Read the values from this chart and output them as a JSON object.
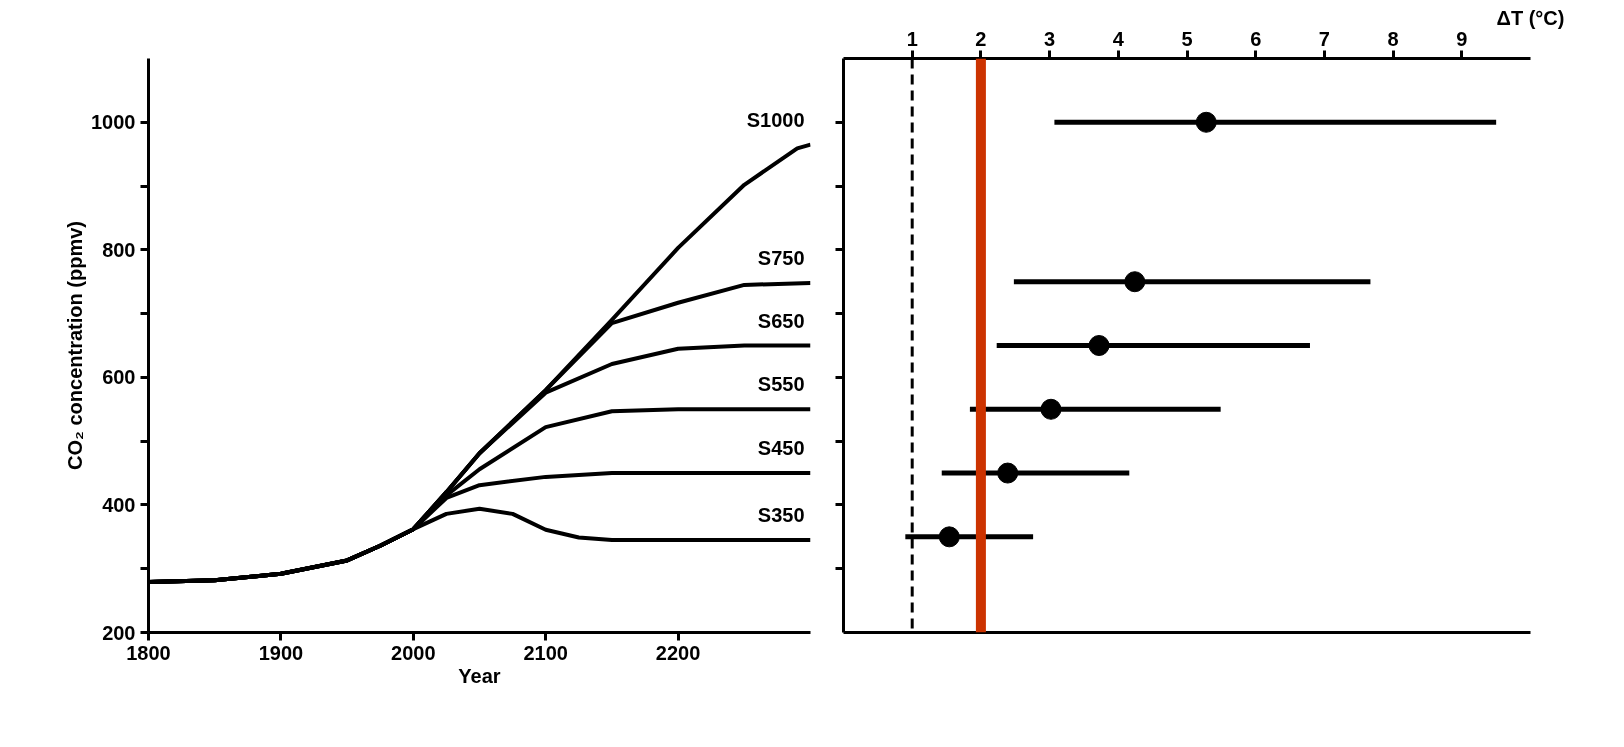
{
  "chart_data": [
    {
      "type": "line",
      "xlabel": "Year",
      "ylabel": "CO₂ concentration (ppmv)",
      "xlim": [
        1800,
        2300
      ],
      "xticks": [
        1800,
        1900,
        2000,
        2100,
        2200
      ],
      "ylim": [
        200,
        1100
      ],
      "yticks": [
        200,
        {
          "value": 300,
          "label": null
        },
        400,
        {
          "value": 500,
          "label": null
        },
        600,
        {
          "value": 700,
          "label": null
        },
        800,
        {
          "value": 900,
          "label": null
        },
        1000
      ],
      "legend": "right",
      "grid": false,
      "marker": "none",
      "line_style": "solid",
      "series": [
        {
          "name": "S1000",
          "color": "#000000",
          "x": [
            1800,
            1850,
            1900,
            1950,
            1975,
            2000,
            2025,
            2050,
            2100,
            2150,
            2200,
            2250,
            2290,
            2300
          ],
          "values": [
            279,
            282,
            292,
            313,
            336,
            362,
            420,
            481,
            580,
            690,
            803,
            902,
            959,
            965
          ]
        },
        {
          "name": "S750",
          "color": "#000000",
          "x": [
            1800,
            1850,
            1900,
            1950,
            1975,
            2000,
            2025,
            2050,
            2100,
            2150,
            2200,
            2250,
            2300
          ],
          "values": [
            279,
            282,
            292,
            313,
            336,
            362,
            420,
            481,
            580,
            685,
            717,
            745,
            748
          ]
        },
        {
          "name": "S650",
          "color": "#000000",
          "x": [
            1800,
            1850,
            1900,
            1950,
            1975,
            2000,
            2025,
            2050,
            2100,
            2150,
            2200,
            2250,
            2300
          ],
          "values": [
            279,
            282,
            292,
            313,
            336,
            362,
            420,
            481,
            576,
            621,
            645,
            650,
            650
          ]
        },
        {
          "name": "S550",
          "color": "#000000",
          "x": [
            1800,
            1850,
            1900,
            1950,
            1975,
            2000,
            2025,
            2050,
            2100,
            2150,
            2200,
            2300
          ],
          "values": [
            279,
            282,
            292,
            313,
            336,
            362,
            415,
            456,
            522,
            547,
            550,
            550
          ]
        },
        {
          "name": "S450",
          "color": "#000000",
          "x": [
            1800,
            1850,
            1900,
            1950,
            1975,
            2000,
            2025,
            2050,
            2100,
            2150,
            2300
          ],
          "values": [
            279,
            282,
            292,
            313,
            336,
            362,
            411,
            431,
            444,
            450,
            450
          ]
        },
        {
          "name": "S350",
          "color": "#000000",
          "x": [
            1800,
            1850,
            1900,
            1950,
            1975,
            2000,
            2025,
            2050,
            2075,
            2100,
            2125,
            2150,
            2300
          ],
          "values": [
            279,
            282,
            292,
            313,
            336,
            362,
            386,
            394,
            386,
            361,
            349,
            345,
            345
          ]
        }
      ]
    },
    {
      "type": "scatter",
      "xlabel": "ΔT (°C)",
      "xlim": [
        0,
        10
      ],
      "xticks": [
        1,
        2,
        3,
        4,
        5,
        6,
        7,
        8,
        9
      ],
      "ylim": [
        200,
        1100
      ],
      "yticks": [
        300,
        400,
        500,
        600,
        700,
        800,
        900,
        1000
      ],
      "tick_labels": "x",
      "grid": false,
      "marker": "circle",
      "ref_lines": [
        {
          "axis": "x",
          "value": 1,
          "color": "#000000",
          "line_style": "dashed"
        },
        {
          "axis": "x",
          "value": 2,
          "color": "#cc3300",
          "line_style": "solid"
        }
      ],
      "series": [
        {
          "color": "#000000",
          "x": [
            5.28,
            4.24,
            3.72,
            3.02,
            2.39,
            1.54
          ],
          "values": [
            1000,
            750,
            650,
            550,
            450,
            350
          ],
          "xerrors": [
            [
              3.07,
              9.5
            ],
            [
              2.48,
              7.67
            ],
            [
              2.23,
              6.79
            ],
            [
              1.84,
              5.49
            ],
            [
              1.43,
              4.16
            ],
            [
              0.9,
              2.76
            ]
          ]
        }
      ]
    }
  ]
}
